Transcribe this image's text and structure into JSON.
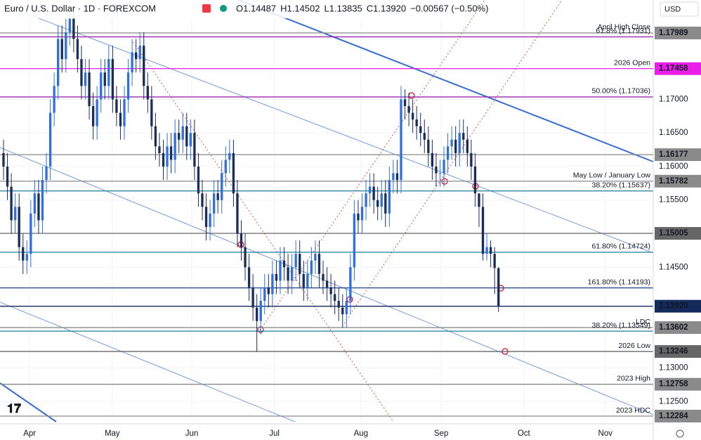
{
  "chart_data": {
    "type": "candlestick",
    "title": "Euro / U.S. Dollar · 1D · FOREXCOM",
    "ohlc_text": [
      "O1.14487",
      "H1.14502",
      "L1.13835",
      "C1.13920",
      "−0.00567 (−0.50%)"
    ],
    "currency": "USD",
    "up_color": "#2f6fe0",
    "down_color": "#1b2d58",
    "xlim": [
      -0.9,
      166.7
    ],
    "xticks": [
      {
        "value": 6.7,
        "label": "Apr"
      },
      {
        "value": 27.9,
        "label": "May"
      },
      {
        "value": 48.3,
        "label": "Jun"
      },
      {
        "value": 69.5,
        "label": "Jul"
      },
      {
        "value": 91.7,
        "label": "Aug"
      },
      {
        "value": 112.3,
        "label": "Sep"
      },
      {
        "value": 133.5,
        "label": "Oct"
      },
      {
        "value": 154.4,
        "label": "Nov"
      }
    ],
    "ylim": [
      1.122,
      1.1848
    ],
    "yticks": [
      {
        "value": 1.17,
        "label": "1.17000"
      },
      {
        "value": 1.165,
        "label": "1.16500"
      },
      {
        "value": 1.16,
        "label": "1.16000"
      },
      {
        "value": 1.155,
        "label": "1.15500"
      },
      {
        "value": 1.145,
        "label": "1.14500"
      },
      {
        "value": 1.13,
        "label": "1.13000"
      },
      {
        "value": 1.125,
        "label": "1.12500"
      }
    ],
    "levels": [
      {
        "text": "April High Close",
        "value": 1.17989,
        "label": "1.17989",
        "color": "#8a8a8a"
      },
      {
        "text": "61.8% (1.17931)",
        "value": 1.17931,
        "color": "#9c27b0"
      },
      {
        "text": "2026 Open",
        "value": 1.17458,
        "label": "1.17458",
        "color": "#e91ee9"
      },
      {
        "text": "50.00% (1.17036)",
        "value": 1.17036,
        "color": "#9c27b0"
      },
      {
        "value": 1.16177,
        "label": "1.16177",
        "color": "#8a8a8a"
      },
      {
        "text": "May Low / January Low",
        "value": 1.15782,
        "label": "1.15782",
        "color": "#8a8a8a"
      },
      {
        "text": "38.20% (1.15637)",
        "value": 1.15637,
        "color": "#1e7f9a"
      },
      {
        "value": 1.15005,
        "label": "1.15005",
        "color": "#666666"
      },
      {
        "text": "61.80% (1.14724)",
        "value": 1.14724,
        "color": "#1e7f9a"
      },
      {
        "text": "161.80% (1.14193)",
        "value": 1.14193,
        "color": "#2a4a8a"
      },
      {
        "value": 1.1392,
        "label": "1.13920",
        "color": "#152a5c"
      },
      {
        "text": "LDC",
        "value": 1.13602,
        "label": "1.13602",
        "color": "#8a8a8a"
      },
      {
        "text": "38.20% (1.13549)",
        "value": 1.13549,
        "color": "#1e7f9a"
      },
      {
        "text": "2026 Low",
        "value": 1.13246,
        "label": "1.13246",
        "color": "#666666"
      },
      {
        "text": "2023 High",
        "value": 1.12758,
        "label": "1.12758",
        "color": "#8a8a8a"
      },
      {
        "text": "2023 HDC",
        "value": 1.12284,
        "label": "1.12284",
        "color": "#8a8a8a"
      }
    ],
    "candles": [
      [
        1.162,
        1.164,
        1.158,
        1.16
      ],
      [
        1.16,
        1.162,
        1.155,
        1.157
      ],
      [
        1.157,
        1.159,
        1.15,
        1.152
      ],
      [
        1.152,
        1.156,
        1.15,
        1.154
      ],
      [
        1.154,
        1.156,
        1.146,
        1.148
      ],
      [
        1.148,
        1.15,
        1.144,
        1.146
      ],
      [
        1.146,
        1.149,
        1.144,
        1.147
      ],
      [
        1.147,
        1.155,
        1.145,
        1.153
      ],
      [
        1.153,
        1.158,
        1.151,
        1.156
      ],
      [
        1.156,
        1.158,
        1.15,
        1.152
      ],
      [
        1.152,
        1.16,
        1.15,
        1.158
      ],
      [
        1.158,
        1.162,
        1.156,
        1.16
      ],
      [
        1.16,
        1.17,
        1.158,
        1.168
      ],
      [
        1.168,
        1.174,
        1.166,
        1.172
      ],
      [
        1.172,
        1.181,
        1.17,
        1.179
      ],
      [
        1.179,
        1.181,
        1.174,
        1.176
      ],
      [
        1.176,
        1.182,
        1.174,
        1.18
      ],
      [
        1.18,
        1.184,
        1.178,
        1.182
      ],
      [
        1.182,
        1.184,
        1.177,
        1.179
      ],
      [
        1.179,
        1.181,
        1.174,
        1.176
      ],
      [
        1.176,
        1.178,
        1.17,
        1.172
      ],
      [
        1.172,
        1.176,
        1.17,
        1.174
      ],
      [
        1.174,
        1.176,
        1.167,
        1.169
      ],
      [
        1.169,
        1.171,
        1.164,
        1.166
      ],
      [
        1.166,
        1.172,
        1.164,
        1.17
      ],
      [
        1.17,
        1.176,
        1.168,
        1.174
      ],
      [
        1.174,
        1.176,
        1.17,
        1.172
      ],
      [
        1.172,
        1.178,
        1.17,
        1.176
      ],
      [
        1.176,
        1.178,
        1.168,
        1.17
      ],
      [
        1.17,
        1.172,
        1.166,
        1.168
      ],
      [
        1.168,
        1.17,
        1.164,
        1.166
      ],
      [
        1.166,
        1.172,
        1.164,
        1.17
      ],
      [
        1.17,
        1.176,
        1.168,
        1.174
      ],
      [
        1.174,
        1.179,
        1.172,
        1.177
      ],
      [
        1.177,
        1.179,
        1.174,
        1.176
      ],
      [
        1.176,
        1.18,
        1.174,
        1.178
      ],
      [
        1.178,
        1.18,
        1.17,
        1.172
      ],
      [
        1.172,
        1.174,
        1.168,
        1.17
      ],
      [
        1.17,
        1.172,
        1.164,
        1.166
      ],
      [
        1.166,
        1.168,
        1.161,
        1.163
      ],
      [
        1.163,
        1.165,
        1.16,
        1.162
      ],
      [
        1.162,
        1.164,
        1.158,
        1.16
      ],
      [
        1.16,
        1.165,
        1.158,
        1.163
      ],
      [
        1.163,
        1.165,
        1.159,
        1.161
      ],
      [
        1.161,
        1.167,
        1.159,
        1.165
      ],
      [
        1.165,
        1.167,
        1.162,
        1.164
      ],
      [
        1.164,
        1.168,
        1.162,
        1.166
      ],
      [
        1.166,
        1.168,
        1.161,
        1.163
      ],
      [
        1.163,
        1.167,
        1.161,
        1.165
      ],
      [
        1.165,
        1.167,
        1.158,
        1.16
      ],
      [
        1.16,
        1.162,
        1.154,
        1.156
      ],
      [
        1.156,
        1.158,
        1.152,
        1.154
      ],
      [
        1.154,
        1.156,
        1.149,
        1.151
      ],
      [
        1.151,
        1.155,
        1.149,
        1.153
      ],
      [
        1.153,
        1.158,
        1.151,
        1.156
      ],
      [
        1.156,
        1.158,
        1.153,
        1.155
      ],
      [
        1.155,
        1.161,
        1.153,
        1.159
      ],
      [
        1.159,
        1.163,
        1.157,
        1.161
      ],
      [
        1.161,
        1.164,
        1.159,
        1.162
      ],
      [
        1.162,
        1.164,
        1.154,
        1.156
      ],
      [
        1.156,
        1.158,
        1.148,
        1.15
      ],
      [
        1.15,
        1.152,
        1.146,
        1.148
      ],
      [
        1.148,
        1.15,
        1.143,
        1.145
      ],
      [
        1.145,
        1.147,
        1.14,
        1.142
      ],
      [
        1.142,
        1.144,
        1.137,
        1.139
      ],
      [
        1.139,
        1.141,
        1.1325,
        1.137
      ],
      [
        1.137,
        1.142,
        1.135,
        1.14
      ],
      [
        1.14,
        1.144,
        1.138,
        1.142
      ],
      [
        1.142,
        1.144,
        1.139,
        1.141
      ],
      [
        1.141,
        1.146,
        1.139,
        1.144
      ],
      [
        1.144,
        1.146,
        1.141,
        1.143
      ],
      [
        1.143,
        1.148,
        1.141,
        1.146
      ],
      [
        1.146,
        1.148,
        1.143,
        1.145
      ],
      [
        1.145,
        1.147,
        1.141,
        1.143
      ],
      [
        1.143,
        1.147,
        1.141,
        1.145
      ],
      [
        1.145,
        1.149,
        1.143,
        1.147
      ],
      [
        1.147,
        1.149,
        1.142,
        1.144
      ],
      [
        1.144,
        1.146,
        1.14,
        1.142
      ],
      [
        1.142,
        1.146,
        1.14,
        1.144
      ],
      [
        1.144,
        1.148,
        1.142,
        1.146
      ],
      [
        1.146,
        1.149,
        1.144,
        1.147
      ],
      [
        1.147,
        1.149,
        1.142,
        1.144
      ],
      [
        1.144,
        1.146,
        1.141,
        1.143
      ],
      [
        1.143,
        1.145,
        1.14,
        1.142
      ],
      [
        1.142,
        1.144,
        1.139,
        1.141
      ],
      [
        1.141,
        1.143,
        1.138,
        1.14
      ],
      [
        1.14,
        1.142,
        1.137,
        1.139
      ],
      [
        1.139,
        1.141,
        1.136,
        1.138
      ],
      [
        1.138,
        1.142,
        1.136,
        1.14
      ],
      [
        1.14,
        1.147,
        1.138,
        1.145
      ],
      [
        1.145,
        1.155,
        1.143,
        1.153
      ],
      [
        1.153,
        1.155,
        1.15,
        1.152
      ],
      [
        1.152,
        1.156,
        1.15,
        1.154
      ],
      [
        1.154,
        1.158,
        1.152,
        1.156
      ],
      [
        1.156,
        1.159,
        1.154,
        1.157
      ],
      [
        1.157,
        1.159,
        1.153,
        1.155
      ],
      [
        1.155,
        1.157,
        1.152,
        1.154
      ],
      [
        1.154,
        1.158,
        1.152,
        1.156
      ],
      [
        1.156,
        1.158,
        1.151,
        1.153
      ],
      [
        1.153,
        1.16,
        1.151,
        1.158
      ],
      [
        1.158,
        1.161,
        1.156,
        1.159
      ],
      [
        1.159,
        1.161,
        1.156,
        1.158
      ],
      [
        1.158,
        1.172,
        1.156,
        1.17
      ],
      [
        1.17,
        1.1715,
        1.167,
        1.169
      ],
      [
        1.169,
        1.171,
        1.166,
        1.168
      ],
      [
        1.168,
        1.17,
        1.165,
        1.167
      ],
      [
        1.167,
        1.169,
        1.164,
        1.166
      ],
      [
        1.166,
        1.168,
        1.163,
        1.165
      ],
      [
        1.165,
        1.167,
        1.162,
        1.164
      ],
      [
        1.164,
        1.166,
        1.16,
        1.162
      ],
      [
        1.162,
        1.164,
        1.158,
        1.16
      ],
      [
        1.16,
        1.162,
        1.157,
        1.159
      ],
      [
        1.159,
        1.161,
        1.157,
        1.159
      ],
      [
        1.159,
        1.163,
        1.157,
        1.161
      ],
      [
        1.161,
        1.165,
        1.159,
        1.163
      ],
      [
        1.163,
        1.166,
        1.161,
        1.164
      ],
      [
        1.164,
        1.166,
        1.16,
        1.162
      ],
      [
        1.162,
        1.167,
        1.16,
        1.165
      ],
      [
        1.165,
        1.167,
        1.162,
        1.164
      ],
      [
        1.164,
        1.166,
        1.16,
        1.162
      ],
      [
        1.162,
        1.164,
        1.158,
        1.16
      ],
      [
        1.16,
        1.162,
        1.154,
        1.156
      ],
      [
        1.156,
        1.156,
        1.151,
        1.154
      ],
      [
        1.154,
        1.156,
        1.146,
        1.147
      ],
      [
        1.147,
        1.15,
        1.146,
        1.148
      ],
      [
        1.148,
        1.149,
        1.145,
        1.147
      ],
      [
        1.147,
        1.148,
        1.141,
        1.1449
      ],
      [
        1.14487,
        1.14502,
        1.13835,
        1.1392
      ]
    ]
  }
}
